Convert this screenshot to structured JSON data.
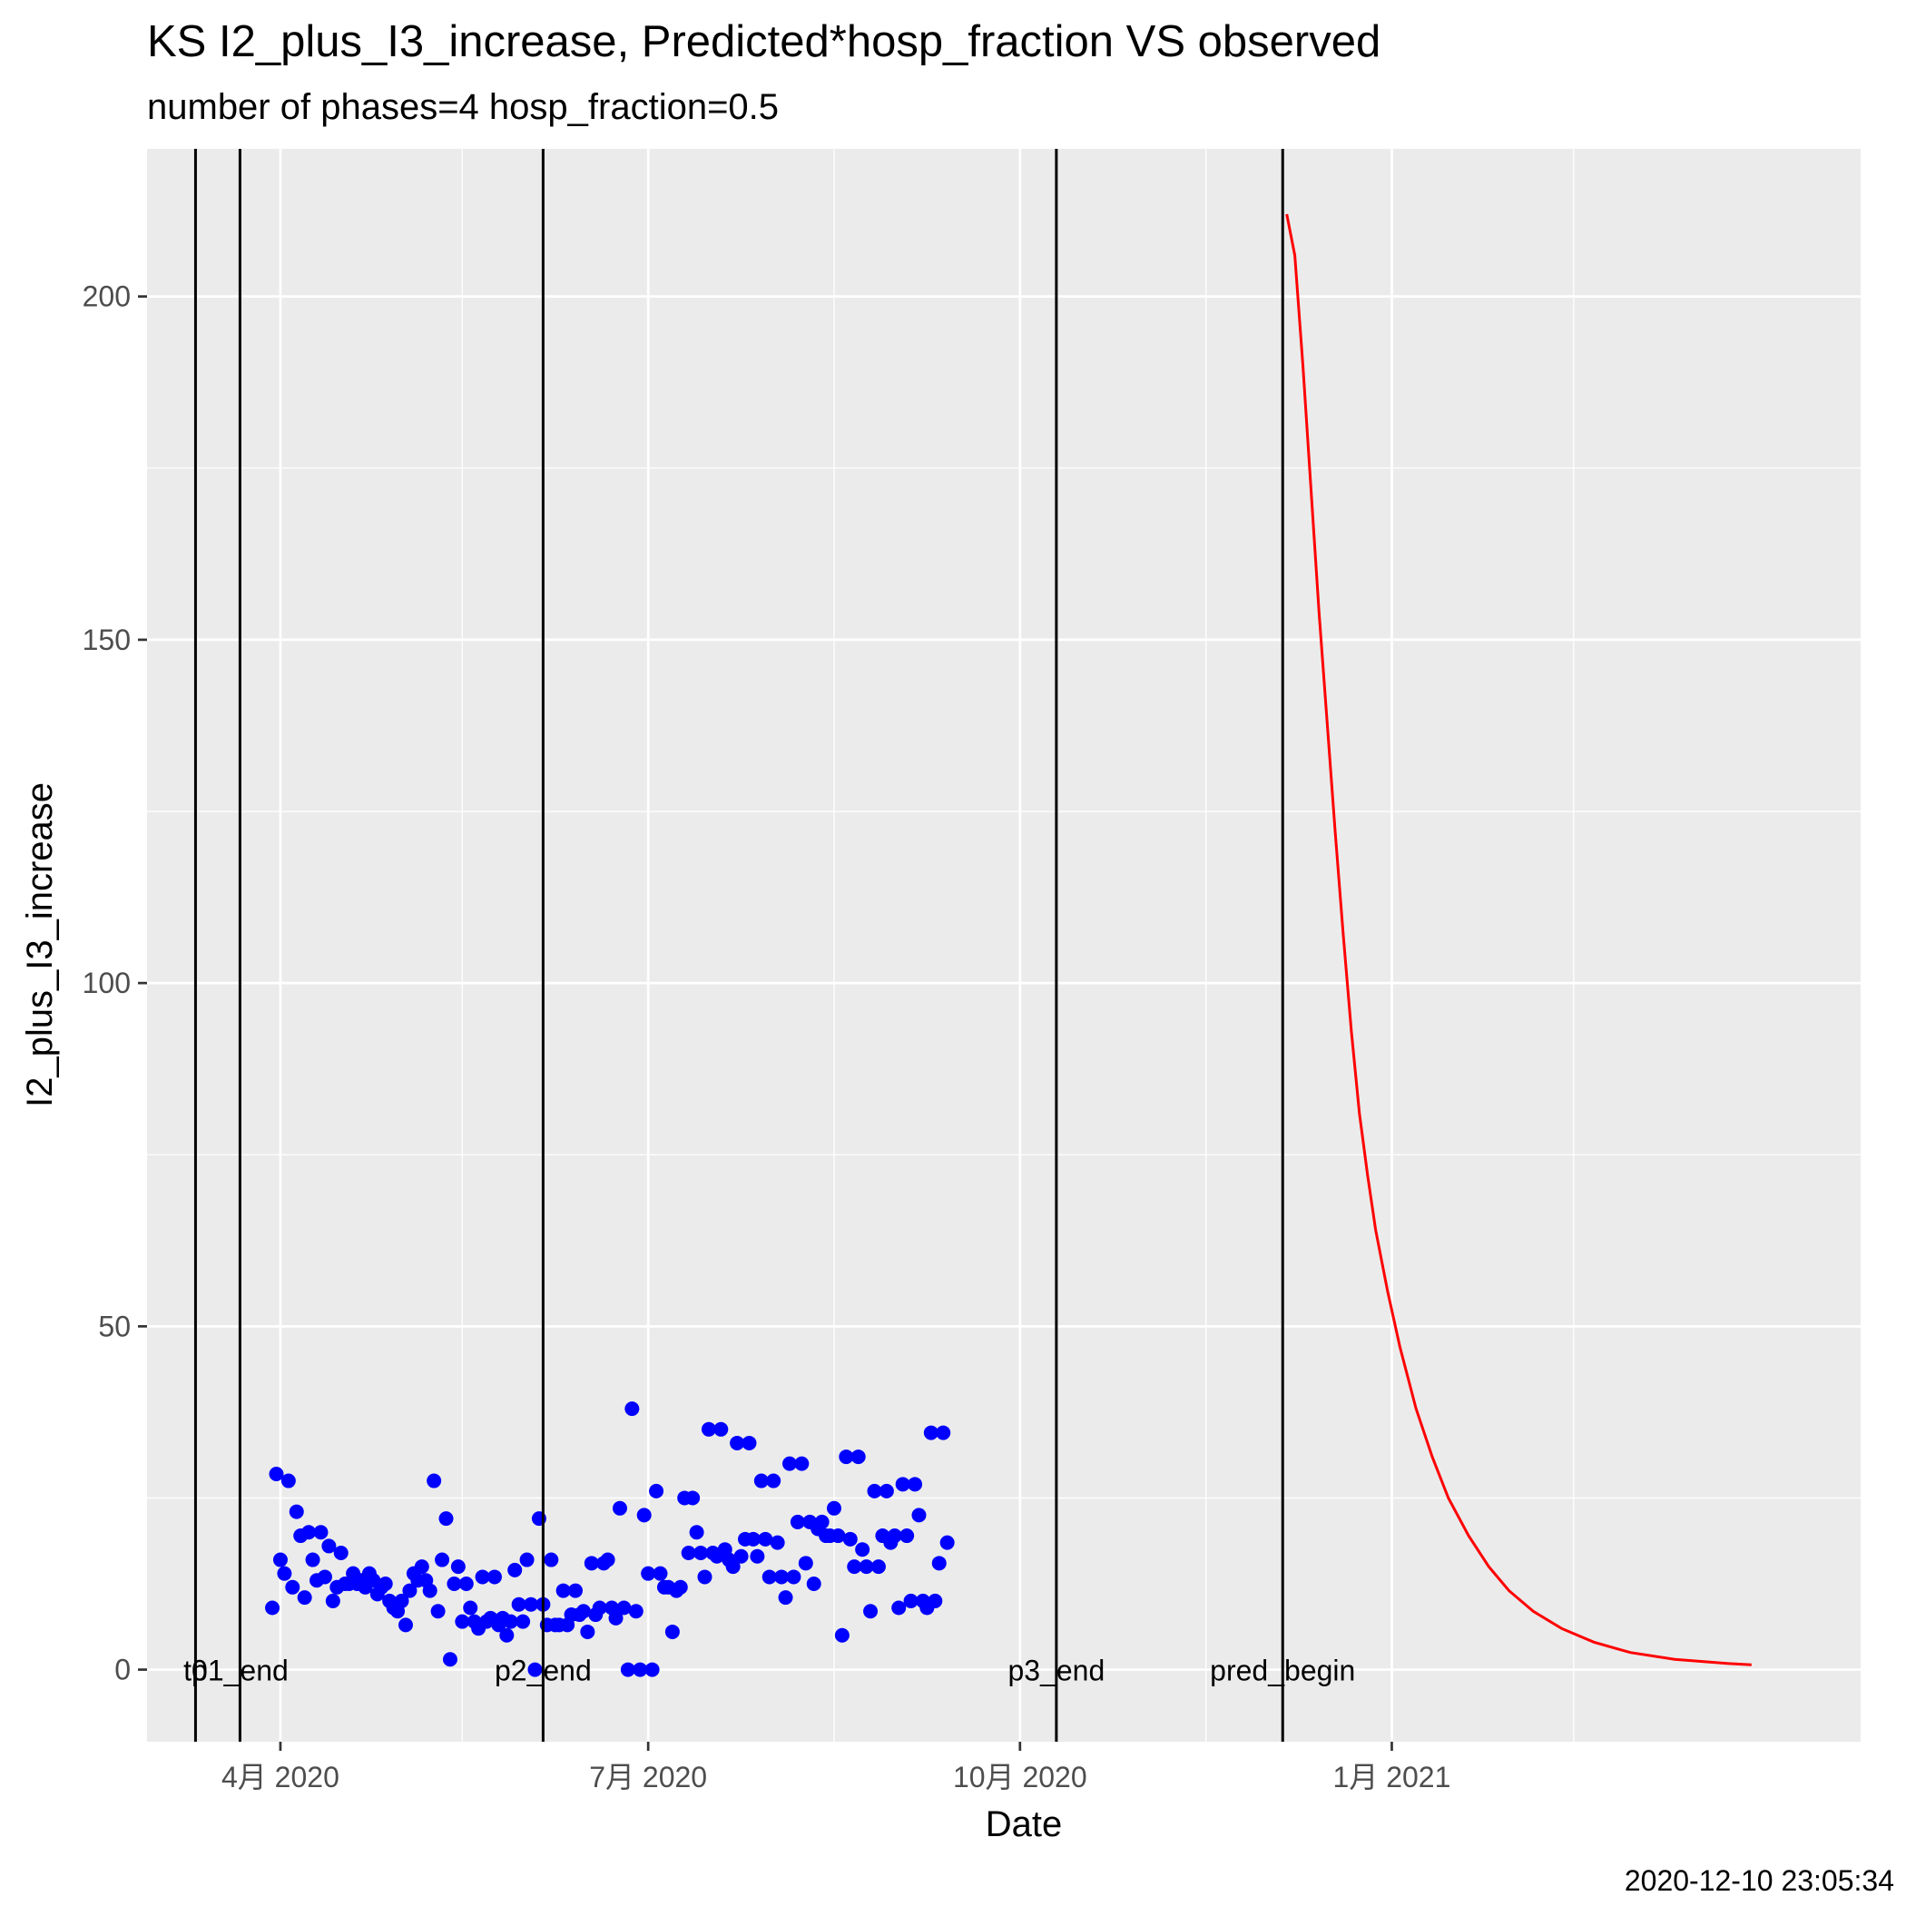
{
  "chart_data": {
    "type": "scatter",
    "title": "KS I2_plus_I3_increase, Predicted*hosp_fraction VS observed",
    "subtitle": "number of phases=4   hosp_fraction=0.5",
    "xlabel": "Date",
    "ylabel": "I2_plus_I3_increase",
    "caption": "2020-12-10 23:05:34",
    "xlim": [
      "2020-02-28",
      "2021-04-27"
    ],
    "ylim": [
      -10.5,
      221.5
    ],
    "grid": true,
    "x_ticks": [
      {
        "date": "2020-04-01",
        "label": "4月 2020"
      },
      {
        "date": "2020-07-01",
        "label": "7月 2020"
      },
      {
        "date": "2020-10-01",
        "label": "10月 2020"
      },
      {
        "date": "2021-01-01",
        "label": "1月 2021"
      }
    ],
    "x_minor_ticks": [
      "2020-05-16",
      "2020-08-16",
      "2020-11-16",
      "2021-02-15"
    ],
    "y_ticks": [
      0,
      50,
      100,
      150,
      200
    ],
    "y_minor_ticks": [
      25,
      75,
      125,
      175
    ],
    "vlines": [
      {
        "date": "2020-03-11",
        "label": "t0"
      },
      {
        "date": "2020-03-22",
        "label": "p1_end"
      },
      {
        "date": "2020-06-05",
        "label": "p2_end"
      },
      {
        "date": "2020-10-10",
        "label": "p3_end"
      },
      {
        "date": "2020-12-05",
        "label": "pred_begin"
      }
    ],
    "series": [
      {
        "type": "scatter",
        "color": "#0000ff",
        "points": [
          [
            "2020-03-30",
            9
          ],
          [
            "2020-03-31",
            28.5
          ],
          [
            "2020-04-01",
            16
          ],
          [
            "2020-04-02",
            14
          ],
          [
            "2020-04-03",
            27.5
          ],
          [
            "2020-04-04",
            12
          ],
          [
            "2020-04-05",
            23
          ],
          [
            "2020-04-06",
            19.5
          ],
          [
            "2020-04-07",
            10.5
          ],
          [
            "2020-04-08",
            20
          ],
          [
            "2020-04-09",
            16
          ],
          [
            "2020-04-10",
            13
          ],
          [
            "2020-04-11",
            20
          ],
          [
            "2020-04-12",
            13.5
          ],
          [
            "2020-04-13",
            18
          ],
          [
            "2020-04-14",
            10
          ],
          [
            "2020-04-15",
            12
          ],
          [
            "2020-04-16",
            17
          ],
          [
            "2020-04-17",
            12.5
          ],
          [
            "2020-04-18",
            12.5
          ],
          [
            "2020-04-19",
            14
          ],
          [
            "2020-04-20",
            12.5
          ],
          [
            "2020-04-21",
            13
          ],
          [
            "2020-04-22",
            12
          ],
          [
            "2020-04-23",
            14
          ],
          [
            "2020-04-24",
            13
          ],
          [
            "2020-04-25",
            11
          ],
          [
            "2020-04-26",
            12
          ],
          [
            "2020-04-27",
            12.5
          ],
          [
            "2020-04-28",
            10
          ],
          [
            "2020-04-29",
            9
          ],
          [
            "2020-04-30",
            8.5
          ],
          [
            "2020-05-01",
            10
          ],
          [
            "2020-05-02",
            6.5
          ],
          [
            "2020-05-03",
            11.5
          ],
          [
            "2020-05-04",
            14
          ],
          [
            "2020-05-05",
            13
          ],
          [
            "2020-05-06",
            15
          ],
          [
            "2020-05-07",
            13
          ],
          [
            "2020-05-08",
            11.5
          ],
          [
            "2020-05-09",
            27.5
          ],
          [
            "2020-05-10",
            8.5
          ],
          [
            "2020-05-11",
            16
          ],
          [
            "2020-05-12",
            22
          ],
          [
            "2020-05-13",
            1.5
          ],
          [
            "2020-05-14",
            12.5
          ],
          [
            "2020-05-15",
            15
          ],
          [
            "2020-05-16",
            7
          ],
          [
            "2020-05-17",
            12.5
          ],
          [
            "2020-05-18",
            9
          ],
          [
            "2020-05-19",
            7
          ],
          [
            "2020-05-20",
            6
          ],
          [
            "2020-05-21",
            13.5
          ],
          [
            "2020-05-22",
            7
          ],
          [
            "2020-05-23",
            7.5
          ],
          [
            "2020-05-24",
            13.5
          ],
          [
            "2020-05-25",
            6.5
          ],
          [
            "2020-05-26",
            7.5
          ],
          [
            "2020-05-27",
            5
          ],
          [
            "2020-05-28",
            7
          ],
          [
            "2020-05-29",
            14.5
          ],
          [
            "2020-05-30",
            9.5
          ],
          [
            "2020-05-31",
            7
          ],
          [
            "2020-06-01",
            16
          ],
          [
            "2020-06-02",
            9.5
          ],
          [
            "2020-06-03",
            0
          ],
          [
            "2020-06-04",
            22
          ],
          [
            "2020-06-05",
            9.5
          ],
          [
            "2020-06-06",
            6.5
          ],
          [
            "2020-06-07",
            16
          ],
          [
            "2020-06-08",
            6.5
          ],
          [
            "2020-06-09",
            6.5
          ],
          [
            "2020-06-10",
            11.5
          ],
          [
            "2020-06-11",
            6.5
          ],
          [
            "2020-06-12",
            8
          ],
          [
            "2020-06-13",
            11.5
          ],
          [
            "2020-06-14",
            8
          ],
          [
            "2020-06-15",
            8.5
          ],
          [
            "2020-06-16",
            5.5
          ],
          [
            "2020-06-17",
            15.5
          ],
          [
            "2020-06-18",
            8
          ],
          [
            "2020-06-19",
            9
          ],
          [
            "2020-06-20",
            15.5
          ],
          [
            "2020-06-21",
            16
          ],
          [
            "2020-06-22",
            9
          ],
          [
            "2020-06-23",
            7.5
          ],
          [
            "2020-06-24",
            23.5
          ],
          [
            "2020-06-25",
            9
          ],
          [
            "2020-06-26",
            0
          ],
          [
            "2020-06-27",
            38
          ],
          [
            "2020-06-28",
            8.5
          ],
          [
            "2020-06-29",
            0
          ],
          [
            "2020-06-30",
            22.5
          ],
          [
            "2020-07-01",
            14
          ],
          [
            "2020-07-02",
            0
          ],
          [
            "2020-07-03",
            26
          ],
          [
            "2020-07-04",
            14
          ],
          [
            "2020-07-05",
            12
          ],
          [
            "2020-07-06",
            12
          ],
          [
            "2020-07-07",
            5.5
          ],
          [
            "2020-07-08",
            11.5
          ],
          [
            "2020-07-09",
            12
          ],
          [
            "2020-07-10",
            25
          ],
          [
            "2020-07-11",
            17
          ],
          [
            "2020-07-12",
            25
          ],
          [
            "2020-07-13",
            20
          ],
          [
            "2020-07-14",
            17
          ],
          [
            "2020-07-15",
            13.5
          ],
          [
            "2020-07-16",
            35
          ],
          [
            "2020-07-17",
            17
          ],
          [
            "2020-07-18",
            16.5
          ],
          [
            "2020-07-19",
            35
          ],
          [
            "2020-07-20",
            17.5
          ],
          [
            "2020-07-21",
            16
          ],
          [
            "2020-07-22",
            15
          ],
          [
            "2020-07-23",
            33
          ],
          [
            "2020-07-24",
            16.5
          ],
          [
            "2020-07-25",
            19
          ],
          [
            "2020-07-26",
            33
          ],
          [
            "2020-07-27",
            19
          ],
          [
            "2020-07-28",
            16.5
          ],
          [
            "2020-07-29",
            27.5
          ],
          [
            "2020-07-30",
            19
          ],
          [
            "2020-07-31",
            13.5
          ],
          [
            "2020-08-01",
            27.5
          ],
          [
            "2020-08-02",
            18.5
          ],
          [
            "2020-08-03",
            13.5
          ],
          [
            "2020-08-04",
            10.5
          ],
          [
            "2020-08-05",
            30
          ],
          [
            "2020-08-06",
            13.5
          ],
          [
            "2020-08-07",
            21.5
          ],
          [
            "2020-08-08",
            30
          ],
          [
            "2020-08-09",
            15.5
          ],
          [
            "2020-08-10",
            21.5
          ],
          [
            "2020-08-11",
            12.5
          ],
          [
            "2020-08-12",
            20.5
          ],
          [
            "2020-08-13",
            21.5
          ],
          [
            "2020-08-14",
            19.5
          ],
          [
            "2020-08-15",
            19.5
          ],
          [
            "2020-08-16",
            23.5
          ],
          [
            "2020-08-17",
            19.5
          ],
          [
            "2020-08-18",
            5
          ],
          [
            "2020-08-19",
            31
          ],
          [
            "2020-08-20",
            19
          ],
          [
            "2020-08-21",
            15
          ],
          [
            "2020-08-22",
            31
          ],
          [
            "2020-08-23",
            17.5
          ],
          [
            "2020-08-24",
            15
          ],
          [
            "2020-08-25",
            8.5
          ],
          [
            "2020-08-26",
            26
          ],
          [
            "2020-08-27",
            15
          ],
          [
            "2020-08-28",
            19.5
          ],
          [
            "2020-08-29",
            26
          ],
          [
            "2020-08-30",
            18.5
          ],
          [
            "2020-08-31",
            19.5
          ],
          [
            "2020-09-01",
            9
          ],
          [
            "2020-09-02",
            27
          ],
          [
            "2020-09-03",
            19.5
          ],
          [
            "2020-09-04",
            10
          ],
          [
            "2020-09-05",
            27
          ],
          [
            "2020-09-06",
            22.5
          ],
          [
            "2020-09-07",
            10
          ],
          [
            "2020-09-08",
            9
          ],
          [
            "2020-09-09",
            34.5
          ],
          [
            "2020-09-10",
            10
          ],
          [
            "2020-09-11",
            15.5
          ],
          [
            "2020-09-12",
            34.5
          ],
          [
            "2020-09-13",
            18.5
          ]
        ]
      },
      {
        "type": "line",
        "color": "#ff0000",
        "points": [
          [
            "2020-12-06",
            212
          ],
          [
            "2020-12-08",
            206
          ],
          [
            "2020-12-10",
            190
          ],
          [
            "2020-12-12",
            172
          ],
          [
            "2020-12-14",
            154
          ],
          [
            "2020-12-16",
            138
          ],
          [
            "2020-12-18",
            122
          ],
          [
            "2020-12-20",
            107
          ],
          [
            "2020-12-22",
            93
          ],
          [
            "2020-12-24",
            81
          ],
          [
            "2020-12-26",
            72
          ],
          [
            "2020-12-28",
            64
          ],
          [
            "2020-12-31",
            55
          ],
          [
            "2021-01-03",
            47
          ],
          [
            "2021-01-07",
            38
          ],
          [
            "2021-01-11",
            31
          ],
          [
            "2021-01-15",
            25
          ],
          [
            "2021-01-20",
            19.5
          ],
          [
            "2021-01-25",
            15
          ],
          [
            "2021-01-30",
            11.5
          ],
          [
            "2021-02-05",
            8.5
          ],
          [
            "2021-02-12",
            6
          ],
          [
            "2021-02-20",
            4
          ],
          [
            "2021-03-01",
            2.5
          ],
          [
            "2021-03-12",
            1.5
          ],
          [
            "2021-03-25",
            0.9
          ],
          [
            "2021-03-31",
            0.7
          ]
        ]
      }
    ]
  }
}
